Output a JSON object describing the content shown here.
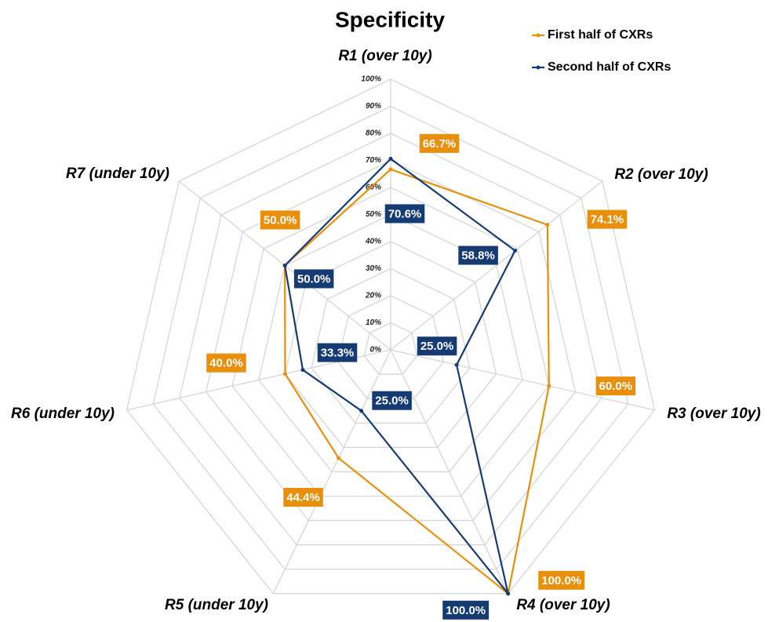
{
  "chart_data": {
    "type": "radar",
    "title": "Specificity",
    "categories": [
      "R1 (over 10y)",
      "R2 (over 10y)",
      "R3 (over 10y)",
      "R4 (over 10y)",
      "R5 (under 10y)",
      "R6 (under 10y)",
      "R7 (under 10y)"
    ],
    "series": [
      {
        "name": "First half of CXRs",
        "color": "#e8900c",
        "values": [
          66.7,
          74.1,
          60.0,
          100,
          44.4,
          40.0,
          50.0
        ],
        "value_labels": [
          "66.7%",
          "74.1%",
          "60.0%",
          "100.0%",
          "44.4%",
          "40.0%",
          "50.0%"
        ]
      },
      {
        "name": "Second half of CXRs",
        "color": "#163a72",
        "values": [
          70.6,
          58.8,
          25.0,
          100,
          25.0,
          33.3,
          50.0
        ],
        "value_labels": [
          "70.6%",
          "58.8%",
          "25.0%",
          "100.0%",
          "25.0%",
          "33.3%",
          "50.0%"
        ]
      }
    ],
    "ylim": [
      0,
      100
    ],
    "yticks": [
      {
        "value": 0,
        "label": "0%"
      },
      {
        "value": 10,
        "label": "10%"
      },
      {
        "value": 20,
        "label": "20%"
      },
      {
        "value": 30,
        "label": "30%"
      },
      {
        "value": 40,
        "label": "40%"
      },
      {
        "value": 50,
        "label": "50%"
      },
      {
        "value": 60,
        "label": "60%"
      },
      {
        "value": 70,
        "label": "70%"
      },
      {
        "value": 80,
        "label": "80%"
      },
      {
        "value": 90,
        "label": "90%"
      },
      {
        "value": 100,
        "label": "100%"
      }
    ],
    "grid": true,
    "legend": "top-right"
  }
}
